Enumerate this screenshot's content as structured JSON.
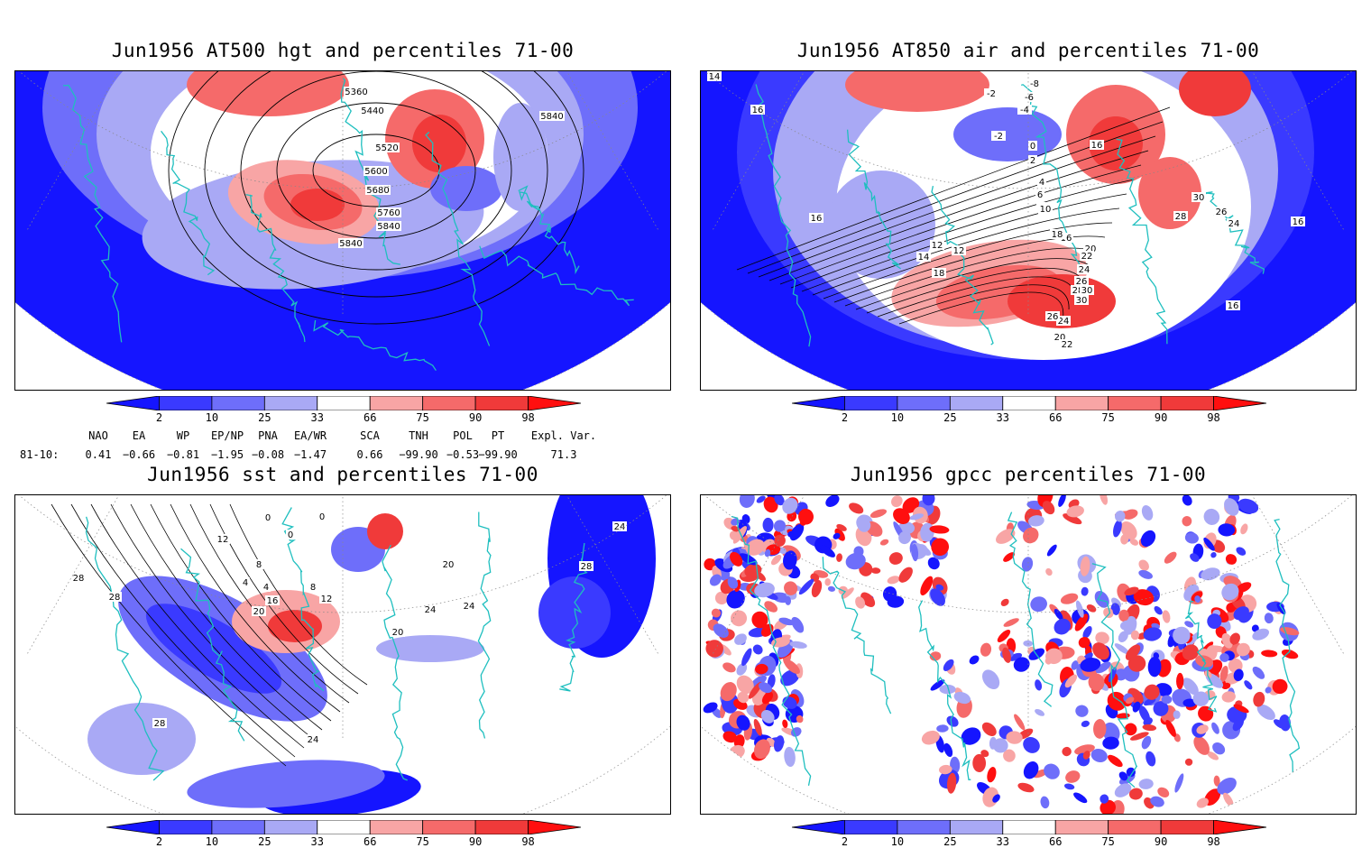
{
  "panels": [
    {
      "title": "Jun1956 AT500 hgt and percentiles 71-00",
      "contour_labels": [
        "5360",
        "5440",
        "5520",
        "5600",
        "5680",
        "5760",
        "5840",
        "5840",
        "5840"
      ]
    },
    {
      "title": "Jun1956 AT850 air and percentiles 71-00",
      "contour_labels": [
        "14",
        "16",
        "16",
        "-8",
        "-6",
        "-4",
        "-2",
        "-2",
        "0",
        "2",
        "4",
        "6",
        "8",
        "10",
        "12",
        "14",
        "16",
        "18",
        "20",
        "22",
        "24",
        "26",
        "28",
        "30",
        "30",
        "28",
        "26",
        "24",
        "16",
        "16",
        "16",
        "30",
        "12",
        "18",
        "20",
        "22",
        "24",
        "26"
      ]
    },
    {
      "title": "Jun1956 sst and percentiles 71-00",
      "contour_labels": [
        "0",
        "0",
        "0",
        "4",
        "8",
        "12",
        "16",
        "20",
        "24",
        "24",
        "28",
        "28",
        "28",
        "20",
        "20",
        "28",
        "24",
        "24",
        "12",
        "8",
        "4"
      ]
    },
    {
      "title": "Jun1956 gpcc percentiles 71-00",
      "contour_labels": []
    }
  ],
  "colorbar": {
    "ticks": [
      "2",
      "10",
      "25",
      "33",
      "66",
      "75",
      "90",
      "98"
    ],
    "colors": [
      "#1515ff",
      "#3a3aff",
      "#6e6efa",
      "#a9a9f5",
      "#ffffff",
      "#f8a5a5",
      "#f56a6a",
      "#f03a3a",
      "#ff0f0f"
    ]
  },
  "indices": {
    "headers": [
      "NAO",
      "EA",
      "WP",
      "EP/NP",
      "PNA",
      "EA/WR",
      "SCA",
      "TNH",
      "POL",
      "PT",
      "Expl. Var."
    ],
    "row_label": "81-10:",
    "values": [
      "0.41",
      "−0.66",
      "−0.81",
      "−1.95",
      "−0.08",
      "−1.47",
      "0.66",
      "−99.90",
      "−0.53",
      "−99.90",
      "71.3"
    ]
  },
  "colors": {
    "land_outline": "#1fbfbf",
    "contour": "#000000",
    "graticule": "#888888"
  }
}
